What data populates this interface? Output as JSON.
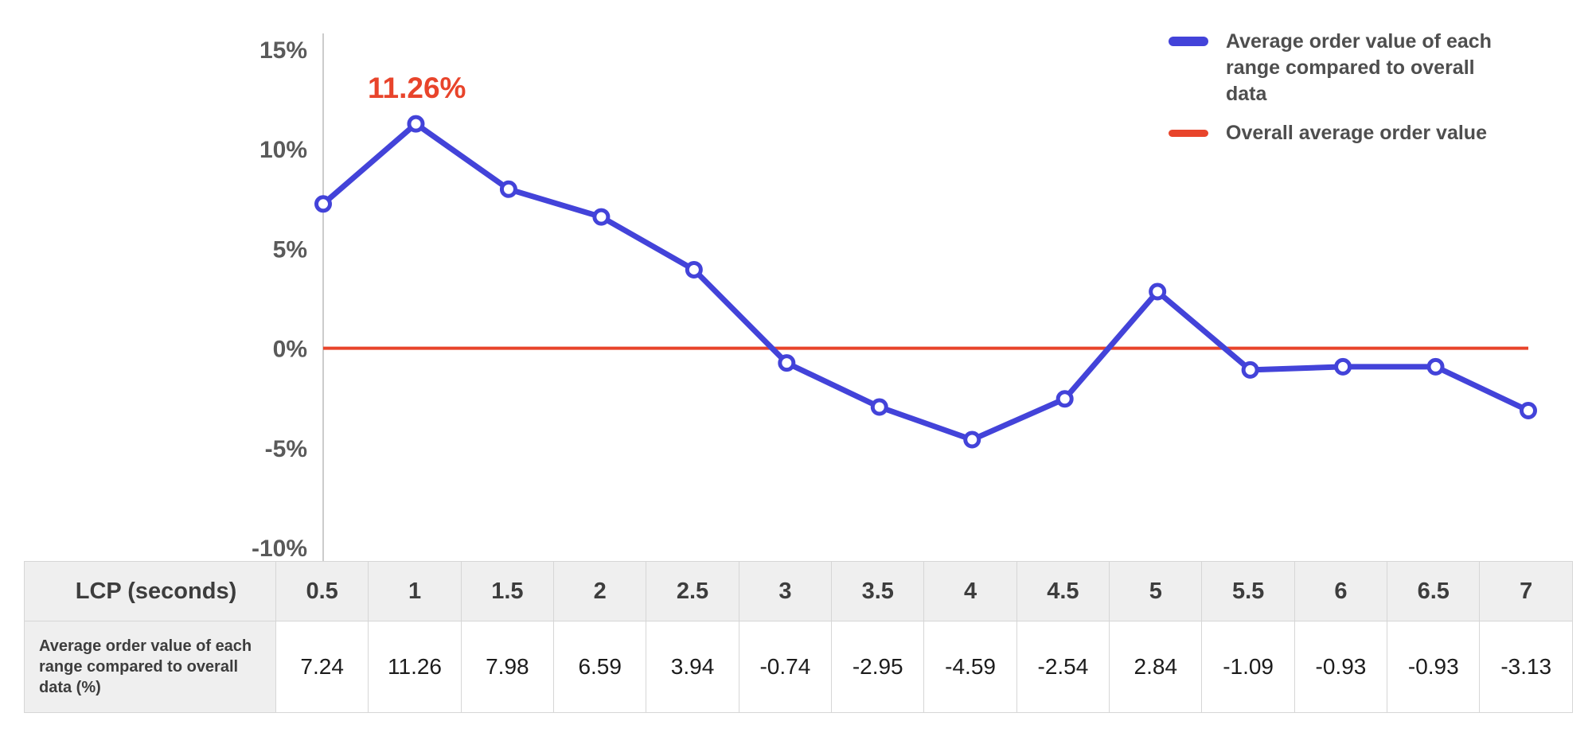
{
  "chart_data": {
    "type": "line",
    "title": "",
    "xlabel": "LCP (seconds)",
    "ylabel": "",
    "x": [
      0.5,
      1,
      1.5,
      2,
      2.5,
      3,
      3.5,
      4,
      4.5,
      5,
      5.5,
      6,
      6.5,
      7
    ],
    "series": [
      {
        "name": "Average order value of each range compared to overall data",
        "values": [
          7.24,
          11.26,
          7.98,
          6.59,
          3.94,
          -0.74,
          -2.95,
          -4.59,
          -2.54,
          2.84,
          -1.09,
          -0.93,
          -0.93,
          -3.13
        ],
        "color": "#4343d9"
      }
    ],
    "reference_line": {
      "name": "Overall average order value",
      "value": 0,
      "color": "#e8442b"
    },
    "ylim": [
      -10,
      15
    ],
    "yticks": [
      15,
      10,
      5,
      0,
      -5,
      -10
    ],
    "ytick_suffix": "%",
    "grid": false,
    "legend_position": "top-right",
    "annotation": {
      "text": "11.26%",
      "x": 1,
      "y": 11.26
    }
  },
  "legend": {
    "series1": "Average order value of each range compared to overall data",
    "series2": "Overall average order value"
  },
  "table": {
    "corner_label": "LCP (seconds)",
    "row_label": "Average order value of each range compared to overall data (%)",
    "columns": [
      "0.5",
      "1",
      "1.5",
      "2",
      "2.5",
      "3",
      "3.5",
      "4",
      "4.5",
      "5",
      "5.5",
      "6",
      "6.5",
      "7"
    ],
    "values": [
      "7.24",
      "11.26",
      "7.98",
      "6.59",
      "3.94",
      "-0.74",
      "-2.95",
      "-4.59",
      "-2.54",
      "2.84",
      "-1.09",
      "-0.93",
      "-0.93",
      "-3.13"
    ]
  },
  "colors": {
    "series": "#4343d9",
    "reference": "#e8442b",
    "axis_label": "#5a5a5a",
    "axis_line": "#cccccc",
    "table_border": "#d6d6d6",
    "header_bg": "#efefef"
  }
}
